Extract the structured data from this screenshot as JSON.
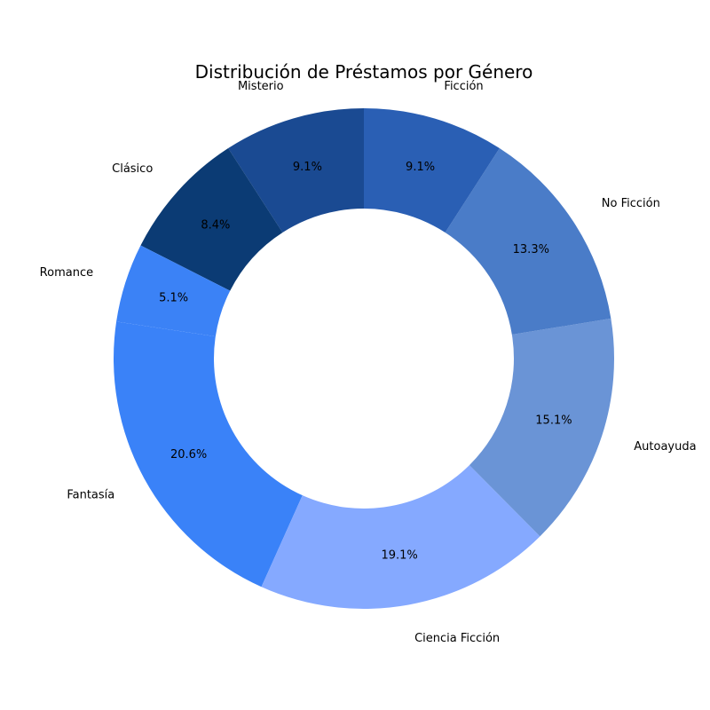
{
  "chart_data": {
    "type": "pie",
    "donut": true,
    "title": "Distribución de Préstamos por Género",
    "start_angle_deg": 90,
    "direction": "counterclockwise",
    "slices": [
      {
        "label": "Misterio",
        "value": 9.1,
        "pct_label": "9.1%",
        "color": "#1A4A92"
      },
      {
        "label": "Clásico",
        "value": 8.4,
        "pct_label": "8.4%",
        "color": "#0B3B74"
      },
      {
        "label": "Romance",
        "value": 5.1,
        "pct_label": "5.1%",
        "color": "#3B82F6"
      },
      {
        "label": "Fantasía",
        "value": 20.6,
        "pct_label": "20.6%",
        "color": "#3A82F8"
      },
      {
        "label": "Ciencia Ficción",
        "value": 19.1,
        "pct_label": "19.1%",
        "color": "#85A9FF"
      },
      {
        "label": "Autoayuda",
        "value": 15.1,
        "pct_label": "15.1%",
        "color": "#6A94D6"
      },
      {
        "label": "No Ficción",
        "value": 13.3,
        "pct_label": "13.3%",
        "color": "#4A7CC8"
      },
      {
        "label": "Ficción",
        "value": 9.1,
        "pct_label": "9.1%",
        "color": "#2A5FB4"
      }
    ]
  }
}
